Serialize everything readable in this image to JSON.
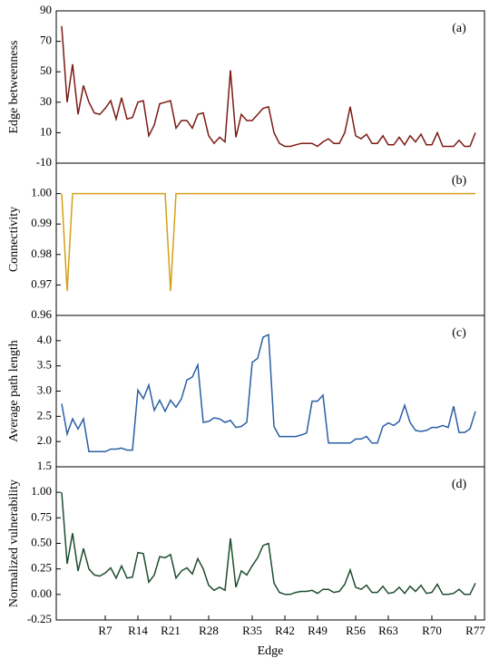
{
  "chart_data": [
    {
      "type": "line",
      "ylabel": "Edge betweenness",
      "annotation": "(a)",
      "color": "#7b1a12",
      "ylim": [
        -10,
        90
      ],
      "yticks": [
        -10,
        10,
        30,
        50,
        70,
        90
      ],
      "values": [
        80,
        30,
        55,
        22,
        41,
        30,
        23,
        22,
        26,
        31,
        19,
        33,
        19,
        20,
        30,
        31,
        8,
        15,
        29,
        30,
        31,
        13,
        18,
        18,
        13,
        22,
        23,
        8,
        3,
        7,
        4,
        51,
        7,
        22,
        18,
        18,
        22,
        26,
        27,
        10,
        3,
        1,
        1,
        2,
        3,
        3,
        3,
        1,
        4,
        6,
        3,
        3,
        10,
        27,
        8,
        6,
        9,
        3,
        3,
        8,
        2,
        2,
        7,
        2,
        8,
        4,
        9,
        2,
        2,
        10,
        1,
        1,
        1,
        5,
        1,
        1,
        10
      ]
    },
    {
      "type": "line",
      "ylabel": "Connectivity",
      "annotation": "(b)",
      "color": "#d4a017",
      "ylim": [
        0.96,
        1.01
      ],
      "yticks": [
        0.96,
        0.97,
        0.98,
        0.99,
        {
          "value": 1,
          "label": "1.00"
        }
      ],
      "values": [
        1,
        0.968,
        1,
        1,
        1,
        1,
        1,
        1,
        1,
        1,
        1,
        1,
        1,
        1,
        1,
        1,
        1,
        1,
        1,
        1,
        0.968,
        1,
        1,
        1,
        1,
        1,
        1,
        1,
        1,
        1,
        1,
        1,
        1,
        1,
        1,
        1,
        1,
        1,
        1,
        1,
        1,
        1,
        1,
        1,
        1,
        1,
        1,
        1,
        1,
        1,
        1,
        1,
        1,
        1,
        1,
        1,
        1,
        1,
        1,
        1,
        1,
        1,
        1,
        1,
        1,
        1,
        1,
        1,
        1,
        1,
        1,
        1,
        1,
        1,
        1,
        1,
        1
      ]
    },
    {
      "type": "line",
      "ylabel": "Average path length",
      "annotation": "(c)",
      "color": "#2a5fa3",
      "ylim": [
        1.5,
        4.5
      ],
      "yticks": [
        1.5,
        {
          "value": 2,
          "label": "2.0"
        },
        2.5,
        {
          "value": 3,
          "label": "3.0"
        },
        3.5,
        {
          "value": 4,
          "label": "4.0"
        }
      ],
      "values": [
        2.75,
        2.15,
        2.45,
        2.25,
        2.45,
        1.8,
        1.8,
        1.8,
        1.8,
        1.85,
        1.85,
        1.87,
        1.83,
        1.83,
        3.02,
        2.85,
        3.12,
        2.62,
        2.82,
        2.6,
        2.82,
        2.68,
        2.85,
        3.22,
        3.28,
        3.52,
        2.38,
        2.4,
        2.47,
        2.45,
        2.38,
        2.42,
        2.28,
        2.3,
        2.38,
        3.57,
        3.65,
        4.07,
        4.12,
        2.3,
        2.1,
        2.1,
        2.1,
        2.1,
        2.13,
        2.17,
        2.8,
        2.8,
        2.92,
        1.97,
        1.97,
        1.97,
        1.97,
        1.97,
        2.05,
        2.05,
        2.1,
        1.97,
        1.97,
        2.3,
        2.37,
        2.32,
        2.4,
        2.72,
        2.38,
        2.22,
        2.2,
        2.22,
        2.28,
        2.28,
        2.32,
        2.28,
        2.7,
        2.18,
        2.18,
        2.25,
        2.6
      ]
    },
    {
      "type": "line",
      "ylabel": "Normalized vulnerability",
      "annotation": "(d)",
      "color": "#1d4d2e",
      "xlabel": "Edge",
      "ylim": [
        -0.25,
        1.25
      ],
      "yticks": [
        -0.25,
        {
          "value": 0,
          "label": "0.00"
        },
        0.25,
        {
          "value": 0.5,
          "label": "0.50"
        },
        0.75,
        {
          "value": 1,
          "label": "1.00"
        }
      ],
      "categories": [
        null,
        null,
        null,
        null,
        null,
        null,
        null,
        null,
        "R7",
        null,
        null,
        null,
        null,
        null,
        "R14",
        null,
        null,
        null,
        null,
        null,
        "R21",
        null,
        null,
        null,
        null,
        null,
        null,
        "R28",
        null,
        null,
        null,
        null,
        null,
        null,
        null,
        "R35",
        null,
        null,
        null,
        null,
        null,
        "R42",
        null,
        null,
        null,
        null,
        null,
        "R49",
        null,
        null,
        null,
        null,
        null,
        null,
        "R56",
        null,
        null,
        null,
        null,
        null,
        "R63",
        null,
        null,
        null,
        null,
        null,
        null,
        null,
        "R70",
        null,
        null,
        null,
        null,
        null,
        null,
        null,
        "R77"
      ],
      "values": [
        1.0,
        0.3,
        0.6,
        0.23,
        0.45,
        0.25,
        0.19,
        0.18,
        0.21,
        0.26,
        0.16,
        0.28,
        0.16,
        0.17,
        0.41,
        0.4,
        0.12,
        0.19,
        0.37,
        0.36,
        0.39,
        0.16,
        0.23,
        0.26,
        0.2,
        0.35,
        0.25,
        0.09,
        0.04,
        0.07,
        0.04,
        0.55,
        0.07,
        0.23,
        0.19,
        0.28,
        0.36,
        0.48,
        0.5,
        0.11,
        0.02,
        0,
        0,
        0.02,
        0.03,
        0.03,
        0.04,
        0.01,
        0.05,
        0.05,
        0.02,
        0.03,
        0.1,
        0.24,
        0.07,
        0.05,
        0.09,
        0.02,
        0.02,
        0.08,
        0.01,
        0.02,
        0.07,
        0.01,
        0.08,
        0.03,
        0.09,
        0.01,
        0.02,
        0.1,
        0,
        0,
        0.01,
        0.05,
        0,
        0,
        0.11
      ]
    }
  ]
}
